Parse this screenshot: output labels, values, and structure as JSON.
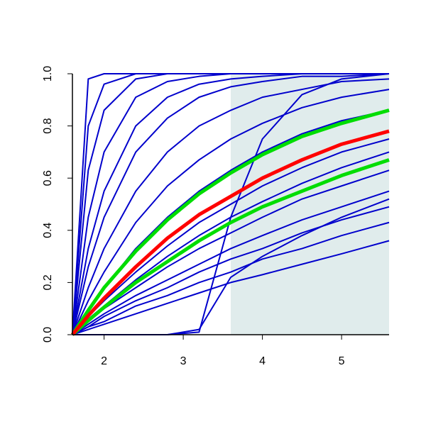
{
  "chart_data": {
    "type": "line",
    "x": [
      1.6,
      1.8,
      2.0,
      2.4,
      2.8,
      3.2,
      3.6,
      4.0,
      4.5,
      5.0,
      5.6
    ],
    "xlim": [
      1.6,
      5.6
    ],
    "xticks": [
      2,
      3,
      4,
      5
    ],
    "ylim": [
      0,
      1
    ],
    "yticks": [
      {
        "value": 0,
        "label": "0.0"
      },
      0.2,
      0.4,
      0.6,
      0.8,
      {
        "value": 1,
        "label": "1.0"
      }
    ],
    "shade_x": [
      3.6,
      5.6
    ],
    "shade_color": "#e0ecec",
    "series": [
      {
        "color": "#0000cc",
        "values": [
          0,
          0.98,
          1,
          1,
          1,
          1,
          1,
          1,
          1,
          1,
          1
        ]
      },
      {
        "color": "#0000cc",
        "values": [
          0,
          0.8,
          0.96,
          1,
          1,
          1,
          1,
          1,
          1,
          1,
          1
        ]
      },
      {
        "color": "#0000cc",
        "values": [
          0,
          0.63,
          0.86,
          0.98,
          1,
          1,
          1,
          1,
          1,
          1,
          1
        ]
      },
      {
        "color": "#0000cc",
        "values": [
          0,
          0.45,
          0.7,
          0.91,
          0.97,
          0.99,
          1,
          1,
          1,
          1,
          1
        ]
      },
      {
        "color": "#0000cc",
        "values": [
          0,
          0.33,
          0.55,
          0.8,
          0.91,
          0.96,
          0.98,
          0.99,
          1,
          1,
          1
        ]
      },
      {
        "color": "#0000cc",
        "values": [
          0,
          0.26,
          0.45,
          0.7,
          0.83,
          0.91,
          0.95,
          0.97,
          0.99,
          0.99,
          1
        ]
      },
      {
        "color": "#0000cc",
        "values": [
          0,
          0.18,
          0.33,
          0.55,
          0.7,
          0.8,
          0.86,
          0.91,
          0.94,
          0.97,
          0.98
        ]
      },
      {
        "color": "#0000cc",
        "values": [
          0,
          0.13,
          0.24,
          0.43,
          0.57,
          0.67,
          0.75,
          0.81,
          0.87,
          0.91,
          0.94
        ]
      },
      {
        "color": "#0000cc",
        "values": [
          0,
          0.1,
          0.18,
          0.33,
          0.45,
          0.55,
          0.63,
          0.7,
          0.77,
          0.82,
          0.86
        ]
      },
      {
        "color": "#0000cc",
        "values": [
          0,
          0.07,
          0.13,
          0.24,
          0.34,
          0.43,
          0.5,
          0.57,
          0.64,
          0.7,
          0.75
        ]
      },
      {
        "color": "#0000cc",
        "values": [
          0,
          0.06,
          0.11,
          0.21,
          0.3,
          0.38,
          0.45,
          0.51,
          0.58,
          0.64,
          0.7
        ]
      },
      {
        "color": "#0000cc",
        "values": [
          0,
          0.05,
          0.1,
          0.18,
          0.26,
          0.33,
          0.39,
          0.45,
          0.52,
          0.57,
          0.63
        ]
      },
      {
        "color": "#0000cc",
        "values": [
          0,
          0.04,
          0.08,
          0.15,
          0.21,
          0.27,
          0.33,
          0.38,
          0.44,
          0.49,
          0.55
        ]
      },
      {
        "color": "#0000cc",
        "values": [
          0,
          0.03,
          0.07,
          0.13,
          0.18,
          0.24,
          0.29,
          0.33,
          0.39,
          0.44,
          0.49
        ]
      },
      {
        "color": "#0000cc",
        "values": [
          0,
          0.03,
          0.05,
          0.11,
          0.15,
          0.2,
          0.24,
          0.29,
          0.33,
          0.38,
          0.43
        ]
      },
      {
        "color": "#0000cc",
        "values": [
          0,
          0.02,
          0.04,
          0.08,
          0.12,
          0.16,
          0.2,
          0.23,
          0.27,
          0.31,
          0.36
        ]
      },
      {
        "color": "#0000cc",
        "values": [
          0,
          0,
          0,
          0,
          0,
          0.01,
          0.45,
          0.75,
          0.92,
          0.98,
          1
        ]
      },
      {
        "color": "#0000cc",
        "values": [
          0,
          0,
          0,
          0,
          0,
          0.02,
          0.22,
          0.3,
          0.38,
          0.45,
          0.52
        ]
      },
      {
        "color": "#00dd00",
        "values": [
          0,
          0.093,
          0.18,
          0.32,
          0.44,
          0.54,
          0.62,
          0.69,
          0.76,
          0.81,
          0.86
        ]
      },
      {
        "color": "#00dd00",
        "values": [
          0,
          0.054,
          0.105,
          0.2,
          0.28,
          0.36,
          0.43,
          0.49,
          0.55,
          0.61,
          0.67
        ]
      },
      {
        "color": "#ff0000",
        "values": [
          0,
          0.073,
          0.14,
          0.26,
          0.37,
          0.46,
          0.53,
          0.6,
          0.67,
          0.73,
          0.78
        ]
      }
    ]
  }
}
